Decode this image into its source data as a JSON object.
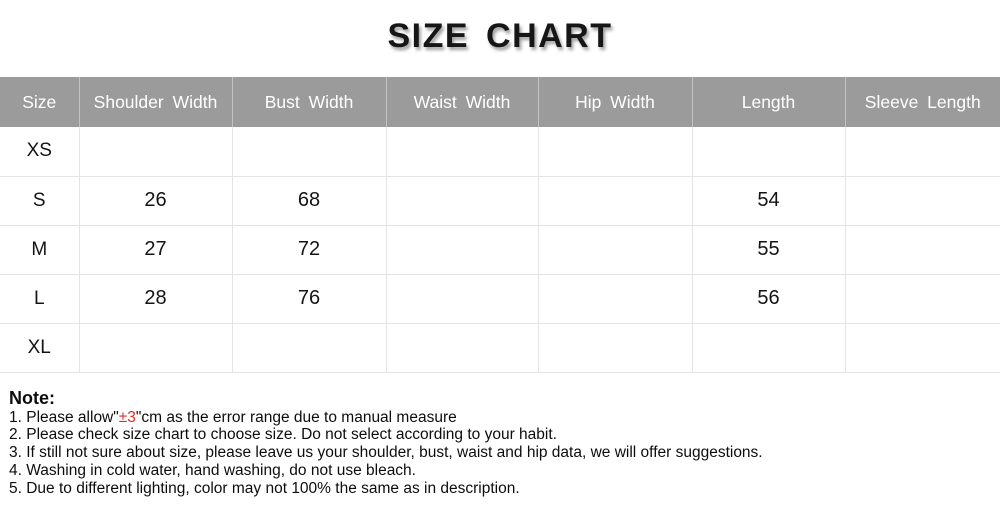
{
  "title": "SIZE CHART",
  "colors": {
    "header_bg": "#9b9b9b",
    "header_text": "#ffffff",
    "header_divider": "#c3c3c3",
    "grid_line": "#e4e4e4",
    "text": "#141414",
    "error_highlight": "#e02b2b"
  },
  "chart_data": {
    "type": "table",
    "title": "SIZE CHART",
    "columns": [
      "Size",
      "Shoulder Width",
      "Bust Width",
      "Waist Width",
      "Hip Width",
      "Length",
      "Sleeve Length"
    ],
    "rows": [
      [
        "XS",
        null,
        null,
        null,
        null,
        null,
        null
      ],
      [
        "S",
        26,
        68,
        null,
        null,
        54,
        null
      ],
      [
        "M",
        27,
        72,
        null,
        null,
        55,
        null
      ],
      [
        "L",
        28,
        76,
        null,
        null,
        56,
        null
      ],
      [
        "XL",
        null,
        null,
        null,
        null,
        null,
        null
      ]
    ]
  },
  "note": {
    "title": "Note:",
    "line1_prefix": "1. Please allow\"",
    "line1_highlight": "±3",
    "line1_suffix": "\"cm as the error range due to manual measure",
    "lines": [
      "2. Please check size chart to choose size. Do not select according to your habit.",
      "3. If still not sure about size, please leave us your shoulder, bust, waist and hip data, we will offer suggestions.",
      "4. Washing in cold water, hand washing, do not use bleach.",
      "5. Due to different lighting, color may not 100% the same as in description."
    ]
  }
}
